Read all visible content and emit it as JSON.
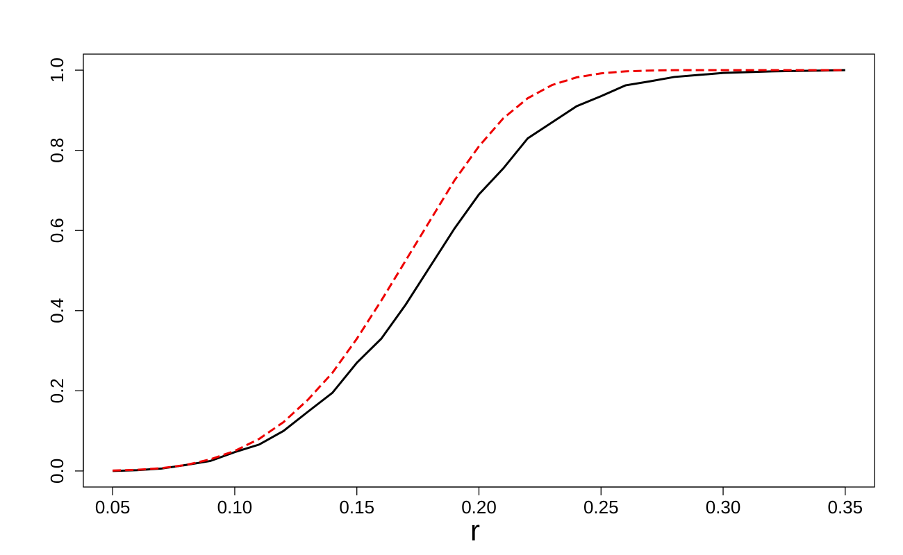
{
  "chart_data": {
    "type": "line",
    "x": [
      0.05,
      0.06,
      0.07,
      0.08,
      0.09,
      0.1,
      0.11,
      0.12,
      0.13,
      0.14,
      0.15,
      0.16,
      0.17,
      0.18,
      0.19,
      0.2,
      0.21,
      0.22,
      0.23,
      0.24,
      0.25,
      0.26,
      0.27,
      0.28,
      0.29,
      0.3,
      0.31,
      0.32,
      0.33,
      0.34,
      0.35
    ],
    "series": [
      {
        "color": "#000000",
        "dash": "solid",
        "values": [
          0.0,
          0.002,
          0.006,
          0.015,
          0.025,
          0.047,
          0.066,
          0.1,
          0.148,
          0.195,
          0.27,
          0.33,
          0.415,
          0.51,
          0.605,
          0.69,
          0.755,
          0.83,
          0.87,
          0.91,
          0.935,
          0.962,
          0.972,
          0.983,
          0.988,
          0.993,
          0.995,
          0.997,
          0.998,
          0.999,
          1.0
        ]
      },
      {
        "color": "#ee0000",
        "dash": "dashed",
        "values": [
          0.001,
          0.003,
          0.007,
          0.015,
          0.029,
          0.05,
          0.08,
          0.122,
          0.178,
          0.245,
          0.33,
          0.425,
          0.525,
          0.625,
          0.725,
          0.81,
          0.88,
          0.93,
          0.963,
          0.982,
          0.992,
          0.997,
          0.999,
          1.0,
          1.0,
          1.0,
          1.0,
          1.0,
          1.0,
          1.0,
          1.0
        ]
      }
    ],
    "xlabel": "r",
    "xlim": [
      0.038,
      0.362
    ],
    "ylim": [
      -0.04,
      1.04
    ],
    "xticks": [
      0.05,
      {
        "value": 0.1,
        "label": "0.10"
      },
      0.15,
      {
        "value": 0.2,
        "label": "0.20"
      },
      0.25,
      {
        "value": 0.3,
        "label": "0.30"
      },
      0.35
    ],
    "yticks": [
      {
        "value": 0,
        "label": "0.0"
      },
      0.2,
      0.4,
      0.6,
      0.8,
      {
        "value": 1,
        "label": "1.0"
      }
    ]
  }
}
